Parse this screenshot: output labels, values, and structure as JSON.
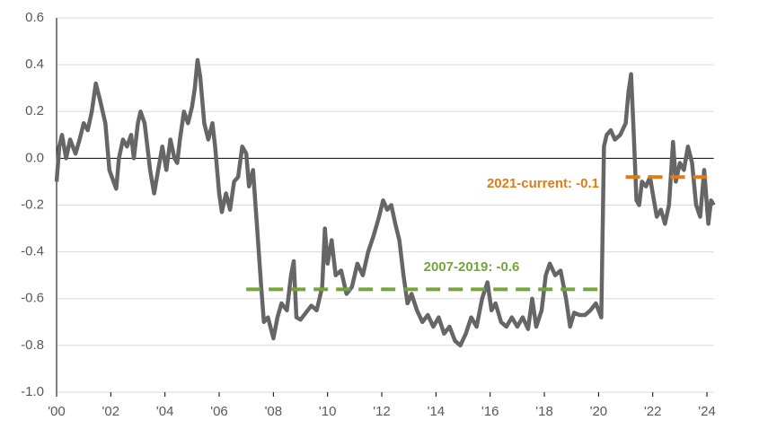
{
  "chart_data": {
    "type": "line",
    "x": [
      2000.0,
      2000.1,
      2000.2,
      2000.35,
      2000.5,
      2000.7,
      2000.85,
      2001.0,
      2001.15,
      2001.3,
      2001.45,
      2001.6,
      2001.8,
      2001.95,
      2002.1,
      2002.2,
      2002.3,
      2002.45,
      2002.6,
      2002.75,
      2002.85,
      2003.0,
      2003.1,
      2003.25,
      2003.35,
      2003.45,
      2003.6,
      2003.75,
      2003.9,
      2004.05,
      2004.2,
      2004.35,
      2004.45,
      2004.55,
      2004.7,
      2004.85,
      2005.0,
      2005.1,
      2005.2,
      2005.3,
      2005.45,
      2005.6,
      2005.75,
      2005.85,
      2006.0,
      2006.1,
      2006.25,
      2006.4,
      2006.55,
      2006.7,
      2006.85,
      2007.0,
      2007.1,
      2007.25,
      2007.4,
      2007.55,
      2007.65,
      2007.8,
      2008.0,
      2008.15,
      2008.3,
      2008.5,
      2008.65,
      2008.75,
      2008.85,
      2009.0,
      2009.2,
      2009.4,
      2009.6,
      2009.8,
      2009.9,
      2010.0,
      2010.15,
      2010.3,
      2010.5,
      2010.7,
      2010.9,
      2011.1,
      2011.3,
      2011.5,
      2011.7,
      2011.9,
      2012.05,
      2012.2,
      2012.35,
      2012.5,
      2012.65,
      2012.8,
      2012.95,
      2013.1,
      2013.3,
      2013.5,
      2013.7,
      2013.9,
      2014.1,
      2014.3,
      2014.5,
      2014.7,
      2014.9,
      2015.1,
      2015.3,
      2015.5,
      2015.7,
      2015.9,
      2016.05,
      2016.2,
      2016.4,
      2016.6,
      2016.8,
      2017.0,
      2017.2,
      2017.4,
      2017.55,
      2017.7,
      2017.9,
      2018.05,
      2018.2,
      2018.4,
      2018.6,
      2018.8,
      2018.95,
      2019.1,
      2019.3,
      2019.5,
      2019.7,
      2019.9,
      2020.1,
      2020.2,
      2020.3,
      2020.45,
      2020.6,
      2020.8,
      2021.0,
      2021.1,
      2021.2,
      2021.3,
      2021.4,
      2021.5,
      2021.6,
      2021.75,
      2021.9,
      2022.0,
      2022.15,
      2022.3,
      2022.45,
      2022.6,
      2022.75,
      2022.85,
      2023.0,
      2023.15,
      2023.3,
      2023.45,
      2023.6,
      2023.75,
      2023.9,
      2024.05,
      2024.15,
      2024.25
    ],
    "series": [
      {
        "color": "#666666",
        "values": [
          -0.1,
          0.05,
          0.1,
          0.0,
          0.08,
          0.02,
          0.08,
          0.15,
          0.12,
          0.2,
          0.32,
          0.25,
          0.15,
          -0.05,
          -0.1,
          -0.13,
          0.0,
          0.08,
          0.05,
          0.1,
          0.0,
          0.15,
          0.2,
          0.15,
          0.05,
          -0.05,
          -0.15,
          -0.05,
          0.05,
          -0.05,
          0.08,
          0.0,
          -0.02,
          0.08,
          0.2,
          0.15,
          0.22,
          0.3,
          0.42,
          0.35,
          0.15,
          0.08,
          0.15,
          0.05,
          -0.15,
          -0.23,
          -0.15,
          -0.22,
          -0.1,
          -0.08,
          0.05,
          0.02,
          -0.12,
          -0.05,
          -0.3,
          -0.55,
          -0.7,
          -0.68,
          -0.77,
          -0.68,
          -0.62,
          -0.65,
          -0.5,
          -0.44,
          -0.68,
          -0.69,
          -0.66,
          -0.63,
          -0.65,
          -0.55,
          -0.3,
          -0.45,
          -0.35,
          -0.5,
          -0.48,
          -0.58,
          -0.55,
          -0.45,
          -0.5,
          -0.4,
          -0.33,
          -0.25,
          -0.18,
          -0.22,
          -0.2,
          -0.28,
          -0.35,
          -0.5,
          -0.62,
          -0.58,
          -0.65,
          -0.7,
          -0.67,
          -0.72,
          -0.68,
          -0.75,
          -0.72,
          -0.78,
          -0.8,
          -0.75,
          -0.68,
          -0.72,
          -0.6,
          -0.53,
          -0.65,
          -0.62,
          -0.7,
          -0.72,
          -0.68,
          -0.72,
          -0.68,
          -0.73,
          -0.6,
          -0.72,
          -0.65,
          -0.5,
          -0.45,
          -0.5,
          -0.48,
          -0.6,
          -0.72,
          -0.66,
          -0.67,
          -0.67,
          -0.65,
          -0.62,
          -0.68,
          0.05,
          0.1,
          0.12,
          0.08,
          0.1,
          0.15,
          0.28,
          0.36,
          0.1,
          -0.18,
          -0.2,
          -0.1,
          -0.12,
          -0.08,
          -0.15,
          -0.25,
          -0.22,
          -0.28,
          -0.2,
          0.07,
          -0.1,
          -0.02,
          -0.05,
          0.05,
          -0.02,
          -0.2,
          -0.25,
          -0.05,
          -0.28,
          -0.18,
          -0.2
        ]
      }
    ],
    "reference_lines": [
      {
        "label": "2007-2019: -0.6",
        "value": -0.56,
        "x": [
          2007.0,
          2020.2
        ],
        "color": "#77a33a"
      },
      {
        "label": "2021-current: -0.1",
        "value": -0.08,
        "x": [
          2021.0,
          2024.0
        ],
        "color": "#e07b1a"
      }
    ],
    "xlim": [
      2000,
      2024.25
    ],
    "xticks": [
      {
        "value": 2000,
        "label": "'00"
      },
      {
        "value": 2002,
        "label": "'02"
      },
      {
        "value": 2004,
        "label": "'04"
      },
      {
        "value": 2006,
        "label": "'06"
      },
      {
        "value": 2008,
        "label": "'08"
      },
      {
        "value": 2010,
        "label": "'10"
      },
      {
        "value": 2012,
        "label": "'12"
      },
      {
        "value": 2014,
        "label": "'14"
      },
      {
        "value": 2016,
        "label": "'16"
      },
      {
        "value": 2018,
        "label": "'18"
      },
      {
        "value": 2020,
        "label": "'20"
      },
      {
        "value": 2022,
        "label": "'22"
      },
      {
        "value": 2024,
        "label": "'24"
      }
    ],
    "ylim": [
      -1.0,
      0.6
    ],
    "yticks": [
      0.6,
      0.4,
      0.2,
      {
        "value": 0,
        "label": "0.0"
      },
      -0.2,
      -0.4,
      -0.6,
      -0.8,
      {
        "value": -1,
        "label": "-1.0"
      }
    ],
    "grid": true
  }
}
